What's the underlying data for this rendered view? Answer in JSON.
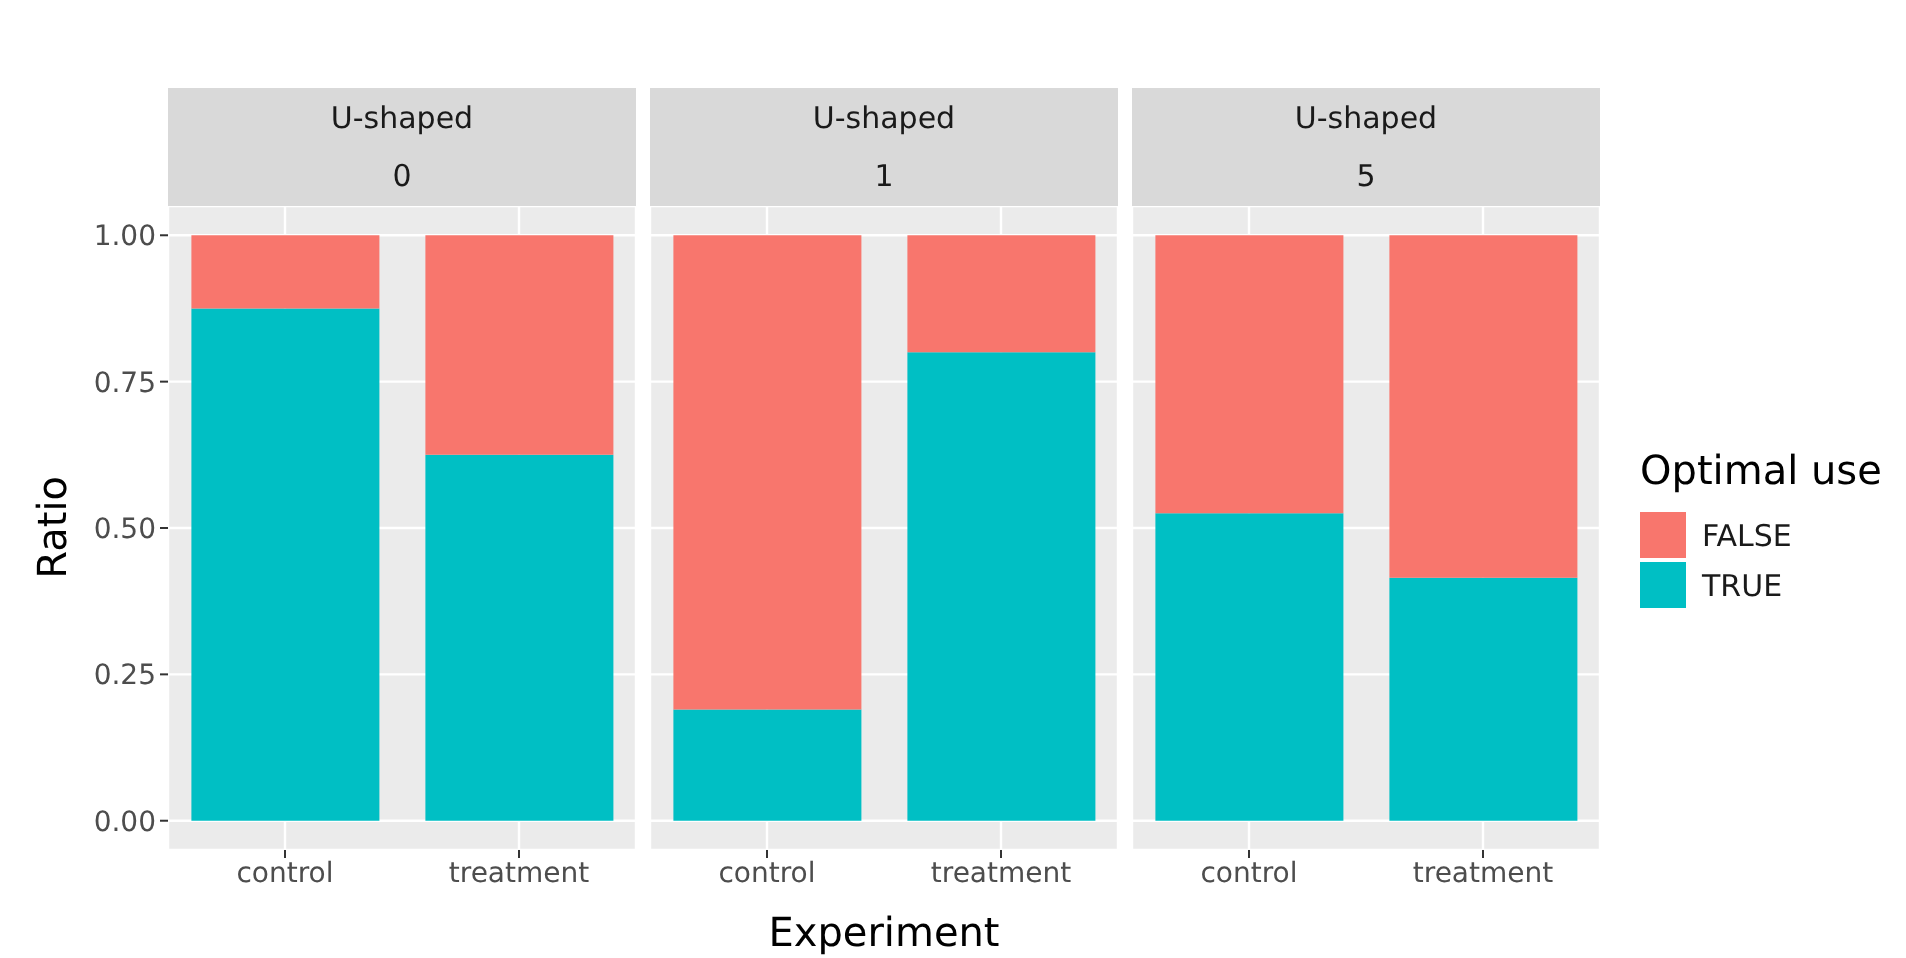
{
  "chart_data": [
    {
      "type": "bar",
      "title": "U-shaped",
      "subtitle": "0",
      "ylabel": "Ratio",
      "categories": [
        "control",
        "treatment"
      ],
      "stacked": true,
      "grid": true,
      "ylim": [
        -0.05,
        1.05
      ],
      "yticks": [
        {
          "value": 0,
          "label": "0.00"
        },
        {
          "value": 0.25,
          "label": "0.25"
        },
        {
          "value": 0.5,
          "label": "0.50"
        },
        {
          "value": 0.75,
          "label": "0.75"
        },
        {
          "value": 1,
          "label": "1.00"
        }
      ],
      "tick_labels": "xy",
      "series": [
        {
          "color": "#00bfc4",
          "values": [
            0.875,
            0.625
          ]
        },
        {
          "color": "#f8766d",
          "values": [
            0.125,
            0.375
          ]
        }
      ]
    },
    {
      "type": "bar",
      "title": "U-shaped",
      "subtitle": "1",
      "xlabel": "Experiment",
      "categories": [
        "control",
        "treatment"
      ],
      "stacked": true,
      "grid": true,
      "ylim": [
        -0.05,
        1.05
      ],
      "yticks": [
        0,
        0.25,
        0.5,
        0.75,
        1
      ],
      "tick_labels": "x",
      "series": [
        {
          "color": "#00bfc4",
          "values": [
            0.19,
            0.8
          ]
        },
        {
          "color": "#f8766d",
          "values": [
            0.81,
            0.2
          ]
        }
      ]
    },
    {
      "type": "bar",
      "title": "U-shaped",
      "subtitle": "5",
      "legend_title": "Optimal use",
      "legend": "right",
      "categories": [
        "control",
        "treatment"
      ],
      "stacked": true,
      "grid": true,
      "ylim": [
        -0.05,
        1.05
      ],
      "yticks": [
        0,
        0.25,
        0.5,
        0.75,
        1
      ],
      "tick_labels": "x",
      "series": [
        {
          "name": "TRUE",
          "color": "#00bfc4",
          "values": [
            0.525,
            0.415
          ]
        },
        {
          "name": "FALSE",
          "color": "#f8766d",
          "values": [
            0.475,
            0.585
          ]
        }
      ]
    }
  ]
}
